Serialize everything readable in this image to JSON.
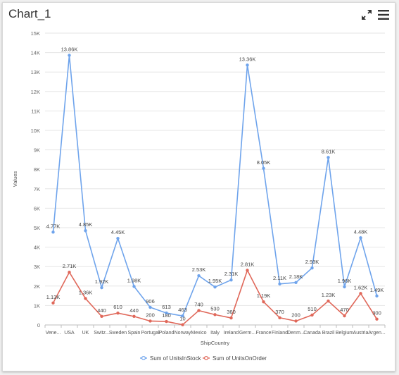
{
  "widget": {
    "title": "Chart_1",
    "expand_icon": "expand-icon",
    "menu_icon": "hamburger-menu-icon"
  },
  "chart_data": {
    "type": "line",
    "xlabel": "ShipCountry",
    "ylabel": "Values",
    "ylim": [
      0,
      15000
    ],
    "yticks": [
      0,
      1000,
      2000,
      3000,
      4000,
      5000,
      6000,
      7000,
      8000,
      9000,
      10000,
      11000,
      12000,
      13000,
      14000,
      15000
    ],
    "ytick_labels": [
      "0",
      "1K",
      "2K",
      "3K",
      "4K",
      "5K",
      "6K",
      "7K",
      "8K",
      "9K",
      "10K",
      "11K",
      "12K",
      "13K",
      "14K",
      "15K"
    ],
    "grid": true,
    "legend_position": "bottom",
    "categories": [
      "Vene...",
      "USA",
      "UK",
      "Switz...",
      "Sweden",
      "Spain",
      "Portugal",
      "Poland",
      "Norway",
      "Mexico",
      "Italy",
      "Ireland",
      "Germ...",
      "France",
      "Finland",
      "Denm...",
      "Canada",
      "Brazil",
      "Belgium",
      "Austria",
      "Argen..."
    ],
    "series": [
      {
        "name": "Sum of UnitsInStock",
        "color": "#6fa4ec",
        "values": [
          4770,
          13860,
          4850,
          1920,
          4450,
          1980,
          906,
          613,
          463,
          2530,
          1950,
          2310,
          13360,
          8050,
          2110,
          2180,
          2930,
          8610,
          1960,
          4480,
          1490
        ],
        "labels": [
          "4.77K",
          "13.86K",
          "4.85K",
          "1.92K",
          "4.45K",
          "1.98K",
          "906",
          "613",
          "463",
          "2.53K",
          "1.95K",
          "2.31K",
          "13.36K",
          "8.05K",
          "2.11K",
          "2.18K",
          "2.93K",
          "8.61K",
          "1.96K",
          "4.48K",
          "1.49K"
        ]
      },
      {
        "name": "Sum of UnitsOnOrder",
        "color": "#e0685a",
        "values": [
          1130,
          2710,
          1360,
          440,
          610,
          440,
          200,
          180,
          10,
          740,
          530,
          360,
          2810,
          1190,
          370,
          200,
          510,
          1230,
          470,
          1620,
          300
        ],
        "labels": [
          "1.13K",
          "2.71K",
          "1.36K",
          "440",
          "610",
          "440",
          "200",
          "180",
          "10",
          "740",
          "530",
          "360",
          "2.81K",
          "1.19K",
          "370",
          "200",
          "510",
          "1.23K",
          "470",
          "1.62K",
          "300"
        ]
      }
    ]
  }
}
